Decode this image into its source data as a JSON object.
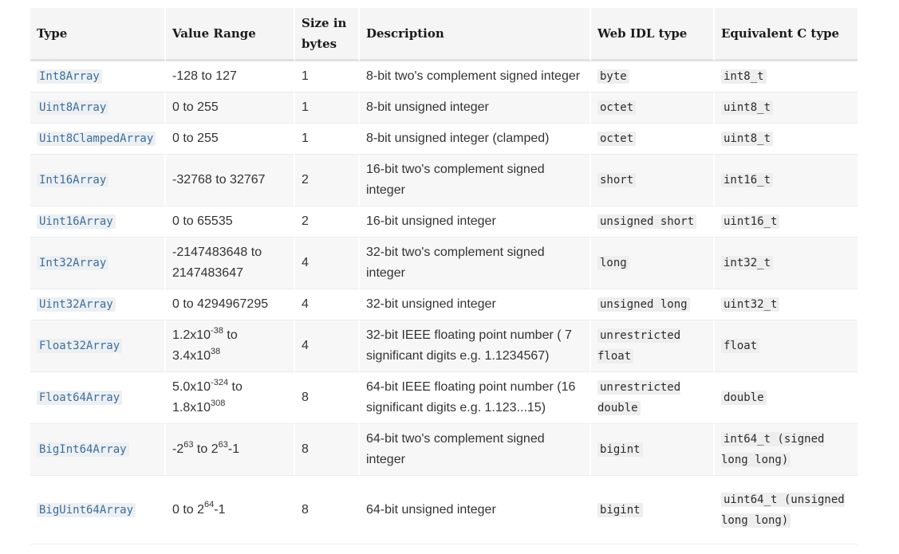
{
  "table": {
    "headers": [
      "Type",
      "Value Range",
      "Size in bytes",
      "Description",
      "Web IDL type",
      "Equivalent C type"
    ],
    "rows": [
      {
        "type": "Int8Array",
        "range_parts": [
          {
            "t": "-128 to 127"
          }
        ],
        "size": "1",
        "description": "8-bit two's complement signed integer",
        "webidl": "byte",
        "ctype": "int8_t",
        "h": "row-h"
      },
      {
        "type": "Uint8Array",
        "range_parts": [
          {
            "t": "0 to 255"
          }
        ],
        "size": "1",
        "description": "8-bit unsigned integer",
        "webidl": "octet",
        "ctype": "uint8_t",
        "h": "row-h"
      },
      {
        "type": "Uint8ClampedArray",
        "range_parts": [
          {
            "t": "0 to 255"
          }
        ],
        "size": "1",
        "description": "8-bit unsigned integer (clamped)",
        "webidl": "octet",
        "ctype": "uint8_t",
        "h": "row-h"
      },
      {
        "type": "Int16Array",
        "range_parts": [
          {
            "t": "-32768 to 32767"
          }
        ],
        "size": "2",
        "description": "16-bit two's complement signed integer",
        "webidl": "short",
        "ctype": "int16_t",
        "h": "row-h2"
      },
      {
        "type": "Uint16Array",
        "range_parts": [
          {
            "t": "0 to 65535"
          }
        ],
        "size": "2",
        "description": "16-bit unsigned integer",
        "webidl": "unsigned short",
        "ctype": "uint16_t",
        "h": "row-h"
      },
      {
        "type": "Int32Array",
        "range_parts": [
          {
            "t": "-2147483648 to 2147483647"
          }
        ],
        "size": "4",
        "description": "32-bit two's complement signed integer",
        "webidl": "long",
        "ctype": "int32_t",
        "h": "row-h2"
      },
      {
        "type": "Uint32Array",
        "range_parts": [
          {
            "t": "0 to 4294967295"
          }
        ],
        "size": "4",
        "description": "32-bit unsigned integer",
        "webidl": "unsigned long",
        "ctype": "uint32_t",
        "h": "row-h"
      },
      {
        "type": "Float32Array",
        "range_parts": [
          {
            "t": "1.2x10"
          },
          {
            "sup": "-38"
          },
          {
            "t": " to 3.4x10"
          },
          {
            "sup": "38"
          }
        ],
        "size": "4",
        "description": "32-bit IEEE floating point number ( 7 significant digits e.g. 1.1234567)",
        "webidl": "unrestricted float",
        "ctype": "float",
        "h": "row-h2"
      },
      {
        "type": "Float64Array",
        "range_parts": [
          {
            "t": "5.0x10"
          },
          {
            "sup": "-324"
          },
          {
            "t": " to 1.8x10"
          },
          {
            "sup": "308"
          }
        ],
        "size": "8",
        "description": "64-bit IEEE floating point number (16 significant digits e.g. 1.123...15)",
        "webidl": "unrestricted double",
        "ctype": "double",
        "h": "row-h2"
      },
      {
        "type": "BigInt64Array",
        "range_parts": [
          {
            "t": "-2"
          },
          {
            "sup": "63"
          },
          {
            "t": " to 2"
          },
          {
            "sup": "63"
          },
          {
            "t": "-1"
          }
        ],
        "size": "8",
        "description": "64-bit two's complement signed integer",
        "webidl": "bigint",
        "ctype": "int64_t (signed long long)",
        "h": "row-h2"
      },
      {
        "type": "BigUint64Array",
        "range_parts": [
          {
            "t": "0 to 2"
          },
          {
            "sup": "64"
          },
          {
            "t": "-1"
          }
        ],
        "size": "8",
        "description": "64-bit unsigned integer",
        "webidl": "bigint",
        "ctype": "uint64_t (unsigned long long)",
        "h": "row-h3"
      }
    ]
  }
}
